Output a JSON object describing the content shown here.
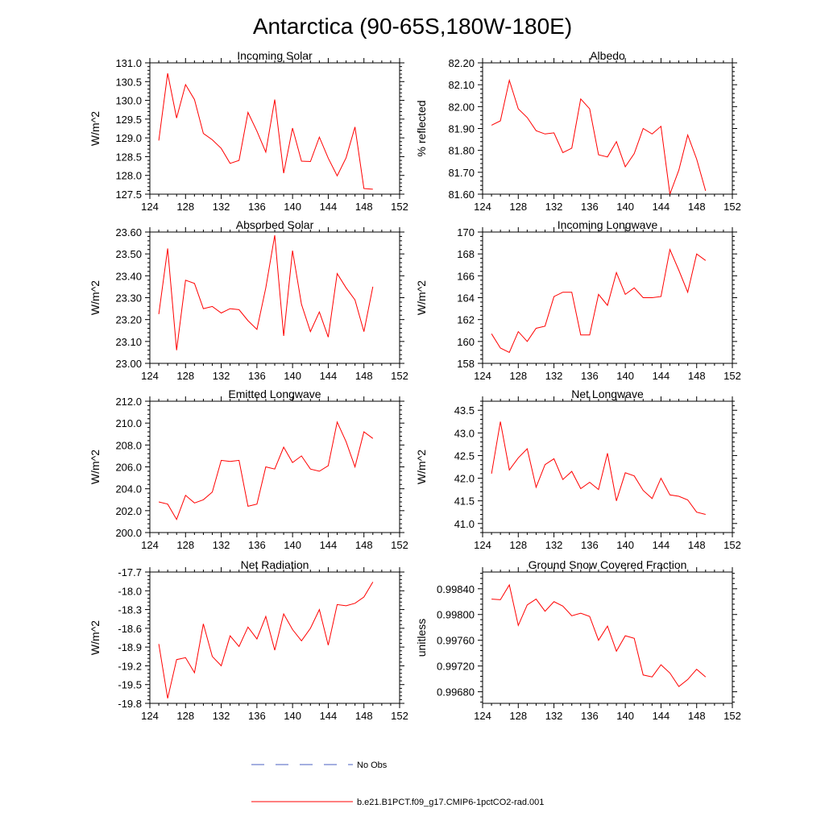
{
  "title": "Antarctica (90-65S,180W-180E)",
  "legend": [
    {
      "label": "No Obs",
      "color": "#4a5fc1",
      "dash": "dashed"
    },
    {
      "label": "b.e21.B1PCT.f09_g17.CMIP6-1pctCO2-rad.001",
      "color": "#ff0000",
      "dash": "solid"
    }
  ],
  "chart_data": [
    {
      "type": "line",
      "title": "Incoming Solar",
      "ylabel": "W/m^2",
      "xlim": [
        124,
        152
      ],
      "xticks": [
        124,
        128,
        132,
        136,
        140,
        144,
        148,
        152
      ],
      "ylim": [
        127.5,
        131.0
      ],
      "yticks": [
        "127.5",
        "128.0",
        "128.5",
        "129.0",
        "129.5",
        "130.0",
        "130.5",
        "131.0"
      ],
      "x": [
        125,
        126,
        127,
        128,
        129,
        130,
        131,
        132,
        133,
        134,
        135,
        136,
        137,
        138,
        139,
        140,
        141,
        142,
        143,
        144,
        145,
        146,
        147,
        148,
        149
      ],
      "series": [
        {
          "name": "b.e21.B1PCT.f09_g17.CMIP6-1pctCO2-rad.001",
          "values": [
            128.93,
            130.72,
            129.53,
            130.42,
            130.02,
            129.12,
            128.95,
            128.72,
            128.32,
            128.4,
            129.68,
            129.18,
            128.62,
            130.02,
            128.06,
            129.26,
            128.38,
            128.37,
            129.02,
            128.46,
            127.99,
            128.47,
            129.29,
            127.65,
            127.63
          ]
        }
      ]
    },
    {
      "type": "line",
      "title": "Albedo",
      "ylabel": "% reflected",
      "xlim": [
        124,
        152
      ],
      "xticks": [
        124,
        128,
        132,
        136,
        140,
        144,
        148,
        152
      ],
      "ylim": [
        81.6,
        82.2
      ],
      "yticks": [
        "81.60",
        "81.70",
        "81.80",
        "81.90",
        "82.00",
        "82.10",
        "82.20"
      ],
      "x": [
        125,
        126,
        127,
        128,
        129,
        130,
        131,
        132,
        133,
        134,
        135,
        136,
        137,
        138,
        139,
        140,
        141,
        142,
        143,
        144,
        145,
        146,
        147,
        148,
        149
      ],
      "series": [
        {
          "name": "b.e21.B1PCT.f09_g17.CMIP6-1pctCO2-rad.001",
          "values": [
            81.915,
            81.935,
            82.12,
            81.99,
            81.95,
            81.89,
            81.875,
            81.88,
            81.79,
            81.81,
            82.035,
            81.99,
            81.78,
            81.77,
            81.84,
            81.725,
            81.785,
            81.9,
            81.875,
            81.91,
            81.6,
            81.71,
            81.87,
            81.76,
            81.615
          ]
        }
      ]
    },
    {
      "type": "line",
      "title": "Absorbed Solar",
      "ylabel": "W/m^2",
      "xlim": [
        124,
        152
      ],
      "xticks": [
        124,
        128,
        132,
        136,
        140,
        144,
        148,
        152
      ],
      "ylim": [
        23.0,
        23.6
      ],
      "yticks": [
        "23.00",
        "23.10",
        "23.20",
        "23.30",
        "23.40",
        "23.50",
        "23.60"
      ],
      "x": [
        125,
        126,
        127,
        128,
        129,
        130,
        131,
        132,
        133,
        134,
        135,
        136,
        137,
        138,
        139,
        140,
        141,
        142,
        143,
        144,
        145,
        146,
        147,
        148,
        149
      ],
      "series": [
        {
          "name": "b.e21.B1PCT.f09_g17.CMIP6-1pctCO2-rad.001",
          "values": [
            23.225,
            23.525,
            23.06,
            23.38,
            23.365,
            23.25,
            23.26,
            23.23,
            23.25,
            23.245,
            23.195,
            23.155,
            23.345,
            23.585,
            23.125,
            23.515,
            23.27,
            23.145,
            23.235,
            23.12,
            23.41,
            23.345,
            23.29,
            23.145,
            23.35
          ]
        }
      ]
    },
    {
      "type": "line",
      "title": "Incoming Longwave",
      "ylabel": "W/m^2",
      "xlim": [
        124,
        152
      ],
      "xticks": [
        124,
        128,
        132,
        136,
        140,
        144,
        148,
        152
      ],
      "ylim": [
        158,
        170
      ],
      "yticks": [
        "158",
        "160",
        "162",
        "164",
        "166",
        "168",
        "170"
      ],
      "x": [
        125,
        126,
        127,
        128,
        129,
        130,
        131,
        132,
        133,
        134,
        135,
        136,
        137,
        138,
        139,
        140,
        141,
        142,
        143,
        144,
        145,
        146,
        147,
        148,
        149
      ],
      "series": [
        {
          "name": "b.e21.B1PCT.f09_g17.CMIP6-1pctCO2-rad.001",
          "values": [
            160.7,
            159.4,
            159.0,
            160.9,
            160.0,
            161.2,
            161.4,
            164.1,
            164.5,
            164.5,
            160.6,
            160.6,
            164.3,
            163.3,
            166.3,
            164.3,
            164.9,
            164.0,
            164.0,
            164.1,
            168.4,
            166.5,
            164.5,
            168.0,
            167.4
          ]
        }
      ]
    },
    {
      "type": "line",
      "title": "Emitted Longwave",
      "ylabel": "W/m^2",
      "xlim": [
        124,
        152
      ],
      "xticks": [
        124,
        128,
        132,
        136,
        140,
        144,
        148,
        152
      ],
      "ylim": [
        200,
        212
      ],
      "yticks": [
        "200.0",
        "202.0",
        "204.0",
        "206.0",
        "208.0",
        "210.0",
        "212.0"
      ],
      "x": [
        125,
        126,
        127,
        128,
        129,
        130,
        131,
        132,
        133,
        134,
        135,
        136,
        137,
        138,
        139,
        140,
        141,
        142,
        143,
        144,
        145,
        146,
        147,
        148,
        149
      ],
      "series": [
        {
          "name": "b.e21.B1PCT.f09_g17.CMIP6-1pctCO2-rad.001",
          "values": [
            202.8,
            202.6,
            201.2,
            203.4,
            202.7,
            203.0,
            203.7,
            206.6,
            206.5,
            206.6,
            202.4,
            202.6,
            206.0,
            205.8,
            207.8,
            206.4,
            207.0,
            205.8,
            205.6,
            206.1,
            210.1,
            208.3,
            206.0,
            209.2,
            208.6
          ]
        }
      ]
    },
    {
      "type": "line",
      "title": "Net Longwave",
      "ylabel": "W/m^2",
      "xlim": [
        124,
        152
      ],
      "xticks": [
        124,
        128,
        132,
        136,
        140,
        144,
        148,
        152
      ],
      "ylim": [
        40.8,
        43.7
      ],
      "yticks": [
        "41.0",
        "41.5",
        "42.0",
        "42.5",
        "43.0",
        "43.5"
      ],
      "ytick_values": [
        41.0,
        41.5,
        42.0,
        42.5,
        43.0,
        43.5
      ],
      "x": [
        125,
        126,
        127,
        128,
        129,
        130,
        131,
        132,
        133,
        134,
        135,
        136,
        137,
        138,
        139,
        140,
        141,
        142,
        143,
        144,
        145,
        146,
        147,
        148,
        149
      ],
      "series": [
        {
          "name": "b.e21.B1PCT.f09_g17.CMIP6-1pctCO2-rad.001",
          "values": [
            42.1,
            43.25,
            42.18,
            42.45,
            42.65,
            41.8,
            42.3,
            42.43,
            41.97,
            42.15,
            41.77,
            41.91,
            41.75,
            42.55,
            41.5,
            42.12,
            42.05,
            41.73,
            41.55,
            42.0,
            41.63,
            41.6,
            41.52,
            41.25,
            41.2
          ]
        }
      ]
    },
    {
      "type": "line",
      "title": "Net Radiation",
      "ylabel": "W/m^2",
      "xlim": [
        124,
        152
      ],
      "xticks": [
        124,
        128,
        132,
        136,
        140,
        144,
        148,
        152
      ],
      "ylim": [
        -19.8,
        -17.7
      ],
      "yticks": [
        "-19.8",
        "-19.5",
        "-19.2",
        "-18.9",
        "-18.6",
        "-18.3",
        "-18.0",
        "-17.7"
      ],
      "x": [
        125,
        126,
        127,
        128,
        129,
        130,
        131,
        132,
        133,
        134,
        135,
        136,
        137,
        138,
        139,
        140,
        141,
        142,
        143,
        144,
        145,
        146,
        147,
        148,
        149
      ],
      "series": [
        {
          "name": "b.e21.B1PCT.f09_g17.CMIP6-1pctCO2-rad.001",
          "values": [
            -18.85,
            -19.72,
            -19.1,
            -19.07,
            -19.31,
            -18.53,
            -19.05,
            -19.2,
            -18.72,
            -18.89,
            -18.58,
            -18.77,
            -18.41,
            -18.95,
            -18.37,
            -18.62,
            -18.8,
            -18.6,
            -18.3,
            -18.87,
            -18.22,
            -18.24,
            -18.2,
            -18.1,
            -17.86
          ]
        }
      ]
    },
    {
      "type": "line",
      "title": "Ground Snow Covered Fraction",
      "ylabel": "unitless",
      "xlim": [
        124,
        152
      ],
      "xticks": [
        124,
        128,
        132,
        136,
        140,
        144,
        148,
        152
      ],
      "ylim": [
        0.99662,
        0.99866
      ],
      "yticks": [
        "0.99680",
        "0.99720",
        "0.99760",
        "0.99800",
        "0.99840"
      ],
      "ytick_values": [
        0.9968,
        0.9972,
        0.9976,
        0.998,
        0.9984
      ],
      "x": [
        125,
        126,
        127,
        128,
        129,
        130,
        131,
        132,
        133,
        134,
        135,
        136,
        137,
        138,
        139,
        140,
        141,
        142,
        143,
        144,
        145,
        146,
        147,
        148,
        149
      ],
      "series": [
        {
          "name": "b.e21.B1PCT.f09_g17.CMIP6-1pctCO2-rad.001",
          "values": [
            0.99824,
            0.99823,
            0.99846,
            0.99783,
            0.99815,
            0.99824,
            0.99805,
            0.9982,
            0.99813,
            0.99798,
            0.99802,
            0.99797,
            0.9976,
            0.99782,
            0.99743,
            0.99767,
            0.99763,
            0.99706,
            0.99703,
            0.99722,
            0.99709,
            0.99688,
            0.99699,
            0.99715,
            0.99703
          ]
        }
      ]
    }
  ]
}
